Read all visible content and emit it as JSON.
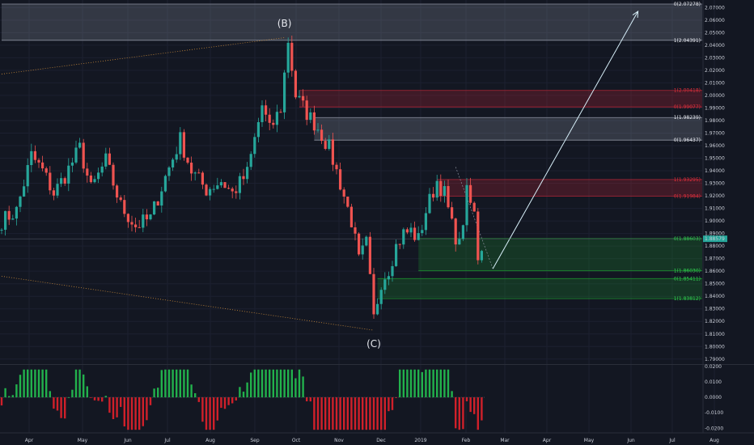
{
  "chart_data": [
    {
      "type": "candlestick",
      "name": "price",
      "x_labels": [
        "Apr",
        "May",
        "Jun",
        "Jul",
        "Aug",
        "Sep",
        "Oct",
        "Nov",
        "Dec",
        "2019",
        "Feb",
        "Mar",
        "Apr",
        "May",
        "Jun",
        "Jul",
        "Aug"
      ],
      "y_ticks": [
        "1.79000",
        "1.80000",
        "1.81000",
        "1.82000",
        "1.83000",
        "1.84000",
        "1.85000",
        "1.86000",
        "1.87000",
        "1.88000",
        "1.89000",
        "1.90000",
        "1.91000",
        "1.92000",
        "1.93000",
        "1.94000",
        "1.95000",
        "1.96000",
        "1.97000",
        "1.98000",
        "1.99000",
        "2.00000",
        "2.01000",
        "2.02000",
        "2.03000",
        "2.04000",
        "2.05000",
        "2.06000",
        "2.07000"
      ],
      "ylim": [
        1.786,
        2.076
      ],
      "last_price": "1.88579",
      "last_price_value": 1.8858,
      "wave_labels": [
        {
          "text": "(B)",
          "x_index": 76,
          "price": 2.052
        },
        {
          "text": "(C)",
          "x_index": 100,
          "price": 1.81
        }
      ],
      "zones": [
        {
          "color": "#8a8f9d",
          "lo": 2.0439,
          "hi": 2.0728,
          "from": 0,
          "labels": [
            {
              "text": "0(2.07278)",
              "price": 2.0728
            },
            {
              "text": "1(2.04391)",
              "price": 2.0439
            }
          ]
        },
        {
          "color": "#b22435",
          "lo": 1.9908,
          "hi": 2.004,
          "from": 80,
          "labels": [
            {
              "text": "1(2.00418)",
              "price": 2.004
            },
            {
              "text": "0(1.99077)",
              "price": 1.9908
            }
          ]
        },
        {
          "color": "#8a8f9d",
          "lo": 1.9644,
          "hi": 1.9824,
          "from": 84,
          "labels": [
            {
              "text": "1(1.98239)",
              "price": 1.9824
            },
            {
              "text": "0(1.96437)",
              "price": 1.9644
            }
          ]
        },
        {
          "color": "#b22435",
          "lo": 1.9198,
          "hi": 1.933,
          "from": 117,
          "labels": [
            {
              "text": "1(1.93295)",
              "price": 1.933
            },
            {
              "text": "0(1.91984)",
              "price": 1.9198
            }
          ]
        },
        {
          "color": "#1c8a2e",
          "lo": 1.8603,
          "hi": 1.886,
          "from": 112,
          "labels": [
            {
              "text": "0(1.88603)",
              "price": 1.886
            },
            {
              "text": "1(1.86030)",
              "price": 1.8603
            }
          ]
        },
        {
          "color": "#1c8a2e",
          "lo": 1.8381,
          "hi": 1.8541,
          "from": 101,
          "labels": [
            {
              "text": "0(1.85411)",
              "price": 1.8541
            },
            {
              "text": "1(1.83812)",
              "price": 1.8381
            }
          ]
        }
      ],
      "projection": {
        "from": [
          132,
          1.862
        ],
        "to": [
          171,
          2.067
        ]
      },
      "trendlines": [
        {
          "from": [
            0,
            2.017
          ],
          "to": [
            76,
            2.046
          ]
        },
        {
          "from": [
            0,
            1.856
          ],
          "to": [
            100,
            1.813
          ]
        }
      ]
    },
    {
      "type": "histogram",
      "name": "oscillator",
      "y_ticks": [
        "-0.0200",
        "-0.0100",
        "0.0000",
        "0.0100",
        "0.0200"
      ],
      "ylim": [
        -0.023,
        0.021
      ]
    }
  ]
}
